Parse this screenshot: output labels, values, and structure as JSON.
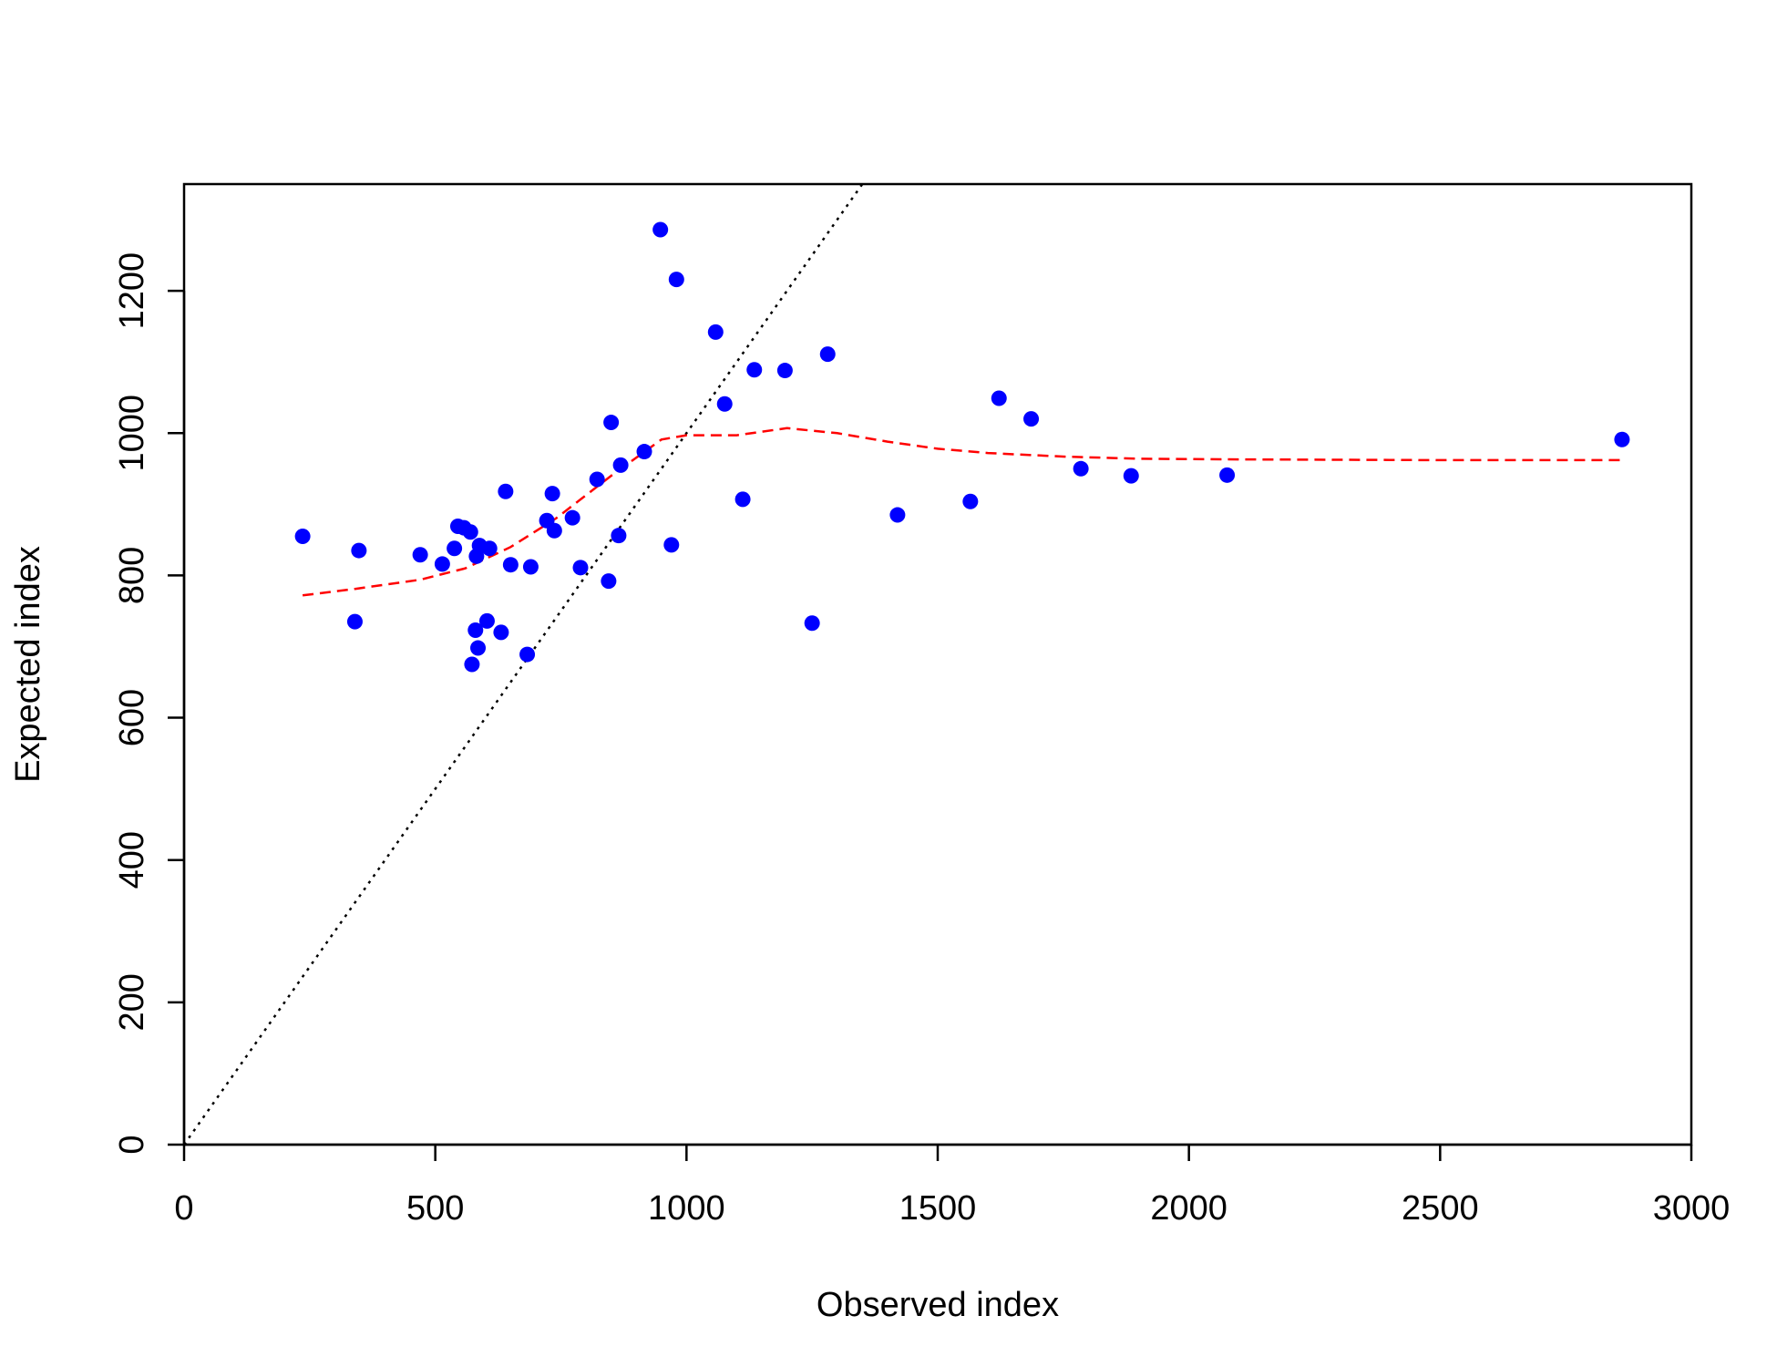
{
  "chart_data": {
    "type": "scatter",
    "xlabel": "Observed index",
    "ylabel": "Expected index",
    "xlim": [
      0,
      3000
    ],
    "ylim": [
      0,
      1350
    ],
    "x_ticks": [
      0,
      500,
      1000,
      1500,
      2000,
      2500,
      3000
    ],
    "y_ticks": [
      0,
      200,
      400,
      600,
      800,
      1000,
      1200
    ],
    "grid": false,
    "legend": "none",
    "points": {
      "color": "#0000ff",
      "x": [
        236,
        340,
        348,
        470,
        514,
        538,
        545,
        557,
        570,
        573,
        580,
        582,
        585,
        588,
        603,
        608,
        631,
        640,
        650,
        683,
        690,
        722,
        733,
        737,
        773,
        789,
        822,
        845,
        850,
        865,
        869,
        916,
        948,
        970,
        980,
        1058,
        1076,
        1112,
        1135,
        1196,
        1250,
        1281,
        1420,
        1565,
        1622,
        1686,
        1785,
        1885,
        2076,
        2862
      ],
      "y": [
        855,
        735,
        835,
        829,
        816,
        838,
        869,
        867,
        861,
        675,
        723,
        827,
        698,
        842,
        736,
        838,
        720,
        918,
        815,
        689,
        812,
        877,
        915,
        863,
        881,
        811,
        935,
        792,
        1015,
        856,
        955,
        974,
        1286,
        843,
        1216,
        1142,
        1041,
        907,
        1089,
        1088,
        733,
        1111,
        885,
        904,
        1049,
        1020,
        950,
        940,
        941,
        991
      ]
    },
    "series": [
      {
        "type": "line",
        "style": "dotted",
        "color": "#000000",
        "x": [
          0,
          1350
        ],
        "y": [
          0,
          1350
        ]
      },
      {
        "type": "line",
        "style": "dashed",
        "color": "#ff0000",
        "x": [
          236,
          340,
          470,
          560,
          650,
          740,
          850,
          950,
          1000,
          1100,
          1200,
          1300,
          1400,
          1500,
          1600,
          1750,
          1900,
          2100,
          2500,
          2862
        ],
        "y": [
          772,
          781,
          794,
          810,
          840,
          880,
          940,
          991,
          997,
          997,
          1007,
          1000,
          988,
          978,
          972,
          967,
          964,
          963,
          962,
          962
        ]
      }
    ]
  }
}
